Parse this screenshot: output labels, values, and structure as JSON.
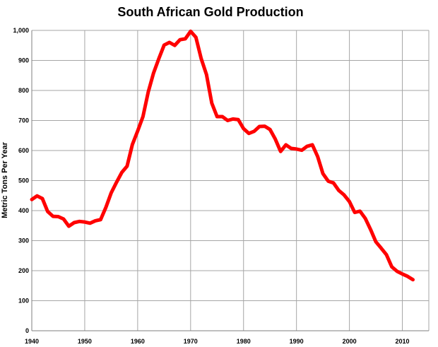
{
  "chart_data": {
    "type": "line",
    "title": "South African Gold Production",
    "xlabel": "",
    "ylabel": "Metric Tons Per Year",
    "xlim": [
      1940,
      2015
    ],
    "ylim": [
      0,
      1000
    ],
    "x_ticks": [
      1940,
      1950,
      1960,
      1970,
      1980,
      1990,
      2000,
      2010
    ],
    "y_ticks": [
      0,
      100,
      200,
      300,
      400,
      500,
      600,
      700,
      800,
      900,
      1000
    ],
    "x_tick_labels": [
      "1940",
      "1950",
      "1960",
      "1970",
      "1980",
      "1990",
      "2000",
      "2010"
    ],
    "y_tick_labels": [
      "0",
      "100",
      "200",
      "300",
      "400",
      "500",
      "600",
      "700",
      "800",
      "900",
      "1,000"
    ],
    "grid": true,
    "legend": "none",
    "series": [
      {
        "color": "#ff0000",
        "x": [
          1940,
          1941,
          1942,
          1943,
          1944,
          1945,
          1946,
          1947,
          1948,
          1949,
          1950,
          1951,
          1952,
          1953,
          1954,
          1955,
          1956,
          1957,
          1958,
          1959,
          1960,
          1961,
          1962,
          1963,
          1964,
          1965,
          1966,
          1967,
          1968,
          1969,
          1970,
          1971,
          1972,
          1973,
          1974,
          1975,
          1976,
          1977,
          1978,
          1979,
          1980,
          1981,
          1982,
          1983,
          1984,
          1985,
          1986,
          1987,
          1988,
          1989,
          1990,
          1991,
          1992,
          1993,
          1994,
          1995,
          1996,
          1997,
          1998,
          1999,
          2000,
          2001,
          2002,
          2003,
          2004,
          2005,
          2006,
          2007,
          2008,
          2009,
          2010,
          2011,
          2012
        ],
        "values": [
          437,
          449,
          440,
          397,
          381,
          380,
          372,
          348,
          360,
          364,
          362,
          358,
          366,
          370,
          411,
          459,
          494,
          527,
          548,
          620,
          665,
          713,
          795,
          858,
          906,
          951,
          960,
          950,
          969,
          972,
          997,
          977,
          906,
          853,
          758,
          713,
          713,
          700,
          705,
          703,
          673,
          657,
          664,
          680,
          681,
          670,
          638,
          597,
          619,
          607,
          605,
          601,
          614,
          619,
          580,
          523,
          498,
          492,
          467,
          452,
          430,
          394,
          398,
          374,
          337,
          296,
          275,
          253,
          213,
          198,
          189,
          181,
          170
        ]
      }
    ]
  }
}
